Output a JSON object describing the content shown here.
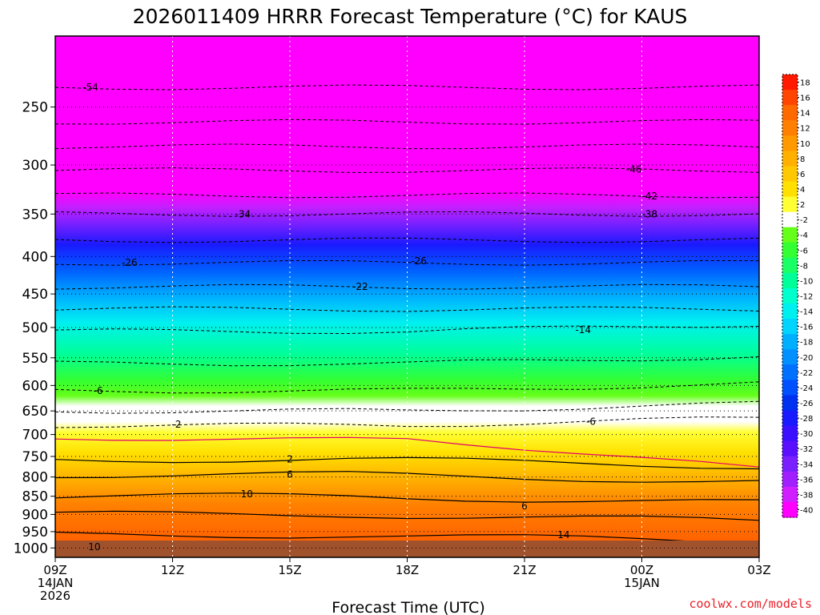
{
  "chart_data": {
    "type": "heatmap",
    "title": "2026011409 HRRR Forecast Temperature (°C) for KAUS",
    "xlabel": "Forecast Time (UTC)",
    "ylabel": "",
    "x_ticks": [
      {
        "hour": 0,
        "lines": [
          "09Z",
          "14JAN",
          "2026"
        ]
      },
      {
        "hour": 3,
        "lines": [
          "12Z"
        ]
      },
      {
        "hour": 6,
        "lines": [
          "15Z"
        ]
      },
      {
        "hour": 9,
        "lines": [
          "18Z"
        ]
      },
      {
        "hour": 12,
        "lines": [
          "21Z"
        ]
      },
      {
        "hour": 15,
        "lines": [
          "00Z",
          "15JAN"
        ]
      },
      {
        "hour": 18,
        "lines": [
          "03Z"
        ]
      }
    ],
    "xlim": [
      0,
      18
    ],
    "y_ticks": [
      250,
      300,
      350,
      400,
      450,
      500,
      550,
      600,
      650,
      700,
      750,
      800,
      850,
      900,
      950,
      1000
    ],
    "ylim": [
      1030,
      200
    ],
    "y_scale": "log",
    "colorbar": {
      "labels": [
        "18",
        "16",
        "14",
        "12",
        "10",
        "8",
        "6",
        "4",
        "2",
        "-2",
        "-4",
        "-6",
        "-8",
        "-10",
        "-12",
        "-14",
        "-16",
        "-18",
        "-20",
        "-22",
        "-24",
        "-26",
        "-28",
        "-30",
        "-32",
        "-34",
        "-36",
        "-38",
        "-40"
      ],
      "colors": [
        "#ff1a00",
        "#ff4500",
        "#ff6a00",
        "#ff8000",
        "#ff9900",
        "#ffb000",
        "#ffc800",
        "#ffe000",
        "#ffff33",
        "#ffffff",
        "#66ff1a",
        "#33ff33",
        "#1aff66",
        "#00ff99",
        "#00ffcc",
        "#00f0f0",
        "#00d4ff",
        "#00b0ff",
        "#0090ff",
        "#0070ff",
        "#0050ff",
        "#0030f0",
        "#1a1aff",
        "#3a10ff",
        "#5a10ff",
        "#7a20ff",
        "#a020ff",
        "#d020ff",
        "#ff00ff"
      ]
    },
    "ground_color": "#a0522d",
    "contour_labels": [
      {
        "text": "-54",
        "hour": 0.9,
        "p": 235
      },
      {
        "text": "-46",
        "hour": 14.8,
        "p": 304
      },
      {
        "text": "-42",
        "hour": 15.2,
        "p": 331
      },
      {
        "text": "-38",
        "hour": 15.2,
        "p": 350
      },
      {
        "text": "-34",
        "hour": 4.8,
        "p": 350
      },
      {
        "text": "-26",
        "hour": 1.9,
        "p": 408
      },
      {
        "text": "-26",
        "hour": 9.3,
        "p": 406
      },
      {
        "text": "-22",
        "hour": 7.8,
        "p": 440
      },
      {
        "text": "-14",
        "hour": 13.5,
        "p": 504
      },
      {
        "text": "-6",
        "hour": 1.1,
        "p": 610
      },
      {
        "text": "-2",
        "hour": 3.1,
        "p": 678
      },
      {
        "text": "-6",
        "hour": 13.7,
        "p": 672
      },
      {
        "text": "2",
        "hour": 6.0,
        "p": 757
      },
      {
        "text": "6",
        "hour": 6.0,
        "p": 794
      },
      {
        "text": "10",
        "hour": 4.9,
        "p": 844
      },
      {
        "text": "6",
        "hour": 12.0,
        "p": 877
      },
      {
        "text": "14",
        "hour": 13.0,
        "p": 960
      },
      {
        "text": "10",
        "hour": 1.0,
        "p": 997
      }
    ],
    "credit": "coolwx.com/models"
  }
}
